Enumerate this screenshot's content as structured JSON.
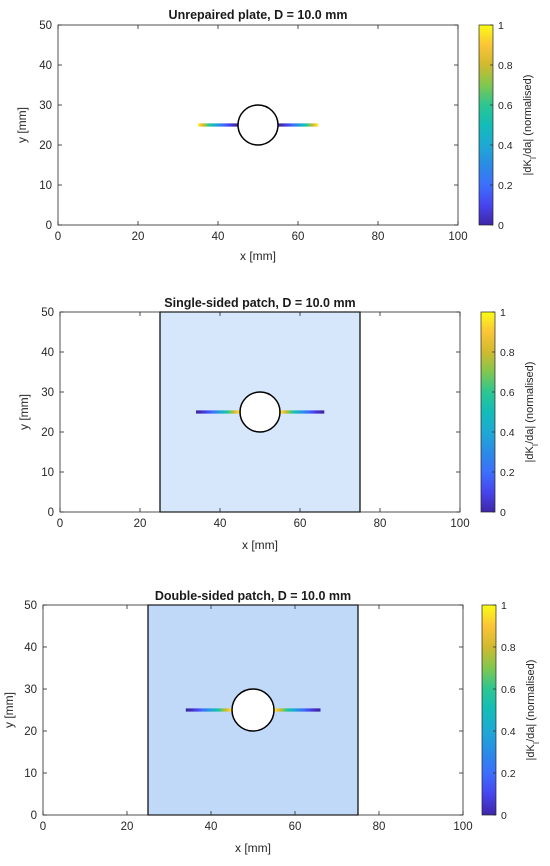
{
  "chart_data": [
    {
      "type": "line",
      "title": "Unrepaired plate, D = 10.0 mm",
      "xlabel": "x [mm]",
      "ylabel": "y [mm]",
      "xlim": [
        0,
        100
      ],
      "ylim": [
        0,
        50
      ],
      "xticks": [
        "0",
        "20",
        "40",
        "60",
        "80",
        "100"
      ],
      "yticks": [
        "0",
        "10",
        "20",
        "30",
        "40",
        "50"
      ],
      "patch": null,
      "hole": {
        "cx": 50,
        "cy": 25,
        "d": 10.0
      },
      "cracks": [
        {
          "x_start": 35,
          "x_end": 45,
          "y": 25,
          "crack_tip_gradient": [
            1,
            0
          ]
        },
        {
          "x_start": 55,
          "x_end": 65,
          "y": 25,
          "crack_tip_gradient": [
            0,
            1
          ]
        }
      ],
      "colorbar": {
        "label": "|dK_I/da| (normalised)",
        "range": [
          0,
          1
        ],
        "ticks": [
          "0",
          "0.2",
          "0.4",
          "0.6",
          "0.8",
          "1"
        ]
      }
    },
    {
      "type": "line",
      "title": "Single-sided patch, D = 10.0 mm",
      "xlabel": "x [mm]",
      "ylabel": "y [mm]",
      "xlim": [
        0,
        100
      ],
      "ylim": [
        0,
        50
      ],
      "xticks": [
        "0",
        "20",
        "40",
        "60",
        "80",
        "100"
      ],
      "yticks": [
        "0",
        "10",
        "20",
        "30",
        "40",
        "50"
      ],
      "patch": {
        "x_start": 25,
        "x_end": 75,
        "color": "#d6e6fb"
      },
      "hole": {
        "cx": 50,
        "cy": 25,
        "d": 10.0
      },
      "cracks": [
        {
          "x_start": 34,
          "x_end": 45,
          "y": 25,
          "crack_tip_gradient": [
            0,
            1
          ]
        },
        {
          "x_start": 55,
          "x_end": 66,
          "y": 25,
          "crack_tip_gradient": [
            1,
            0
          ]
        }
      ],
      "colorbar": {
        "label": "|dK_I/da| (normalised)",
        "range": [
          0,
          1
        ],
        "ticks": [
          "0",
          "0.2",
          "0.4",
          "0.6",
          "0.8",
          "1"
        ]
      }
    },
    {
      "type": "line",
      "title": "Double-sided patch, D = 10.0 mm",
      "xlabel": "x [mm]",
      "ylabel": "y [mm]",
      "xlim": [
        0,
        100
      ],
      "ylim": [
        0,
        50
      ],
      "xticks": [
        "0",
        "20",
        "40",
        "60",
        "80",
        "100"
      ],
      "yticks": [
        "0",
        "10",
        "20",
        "30",
        "40",
        "50"
      ],
      "patch": {
        "x_start": 25,
        "x_end": 75,
        "color": "#c1d9f8"
      },
      "hole": {
        "cx": 50,
        "cy": 25,
        "d": 10.0
      },
      "cracks": [
        {
          "x_start": 34,
          "x_end": 45,
          "y": 25,
          "crack_tip_gradient": [
            0,
            1
          ]
        },
        {
          "x_start": 55,
          "x_end": 66,
          "y": 25,
          "crack_tip_gradient": [
            1,
            0
          ]
        }
      ],
      "colorbar": {
        "label": "|dK_I/da| (normalised)",
        "range": [
          0,
          1
        ],
        "ticks": [
          "0",
          "0.2",
          "0.4",
          "0.6",
          "0.8",
          "1"
        ]
      }
    }
  ]
}
